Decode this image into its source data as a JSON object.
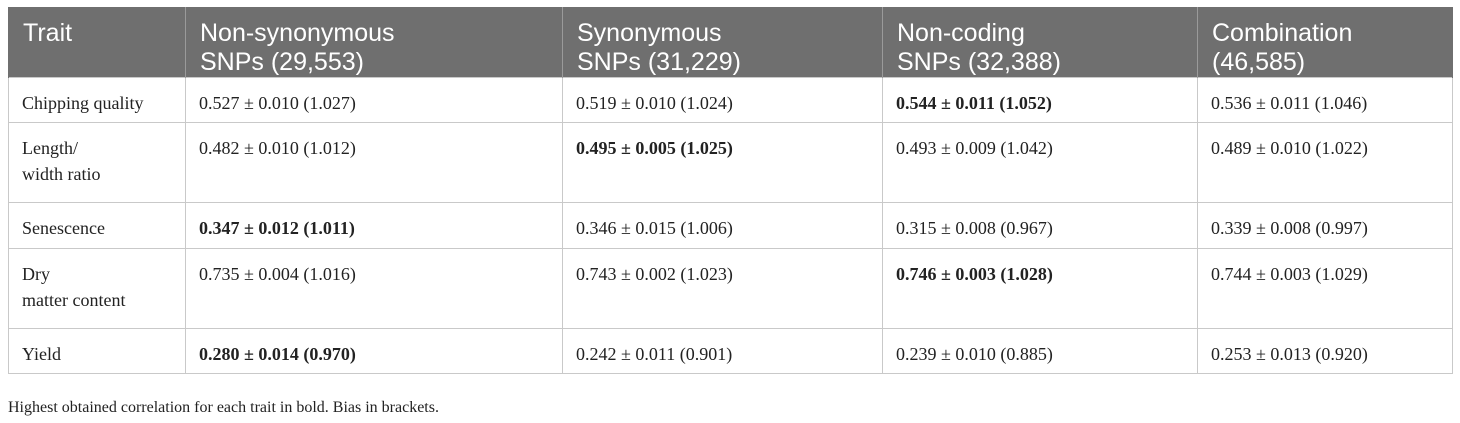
{
  "table": {
    "headers": [
      {
        "line1": "Trait",
        "line2": ""
      },
      {
        "line1": "Non-synonymous",
        "line2": "SNPs (29,553)"
      },
      {
        "line1": "Synonymous",
        "line2": "SNPs (31,229)"
      },
      {
        "line1": "Non-coding",
        "line2": "SNPs (32,388)"
      },
      {
        "line1": "Combination",
        "line2": "(46,585)"
      }
    ],
    "rows": [
      {
        "trait": "Chipping quality",
        "cells": [
          {
            "text": "0.527 ± 0.010 (1.027)",
            "bold": false
          },
          {
            "text": "0.519 ± 0.010 (1.024)",
            "bold": false
          },
          {
            "text": "0.544 ± 0.011 (1.052)",
            "bold": true
          },
          {
            "text": "0.536 ± 0.011 (1.046)",
            "bold": false
          }
        ]
      },
      {
        "trait": "Length/\nwidth ratio",
        "cells": [
          {
            "text": "0.482 ± 0.010 (1.012)",
            "bold": false
          },
          {
            "text": "0.495 ± 0.005 (1.025)",
            "bold": true
          },
          {
            "text": "0.493 ± 0.009 (1.042)",
            "bold": false
          },
          {
            "text": "0.489 ± 0.010 (1.022)",
            "bold": false
          }
        ]
      },
      {
        "trait": "Senescence",
        "cells": [
          {
            "text": "0.347 ± 0.012 (1.011)",
            "bold": true
          },
          {
            "text": "0.346 ± 0.015 (1.006)",
            "bold": false
          },
          {
            "text": "0.315 ± 0.008 (0.967)",
            "bold": false
          },
          {
            "text": "0.339 ± 0.008 (0.997)",
            "bold": false
          }
        ]
      },
      {
        "trait": "Dry\nmatter content",
        "cells": [
          {
            "text": "0.735 ± 0.004 (1.016)",
            "bold": false
          },
          {
            "text": "0.743 ± 0.002 (1.023)",
            "bold": false
          },
          {
            "text": "0.746 ± 0.003 (1.028)",
            "bold": true
          },
          {
            "text": "0.744 ± 0.003 (1.029)",
            "bold": false
          }
        ]
      },
      {
        "trait": "Yield",
        "cells": [
          {
            "text": "0.280 ± 0.014 (0.970)",
            "bold": true
          },
          {
            "text": "0.242 ± 0.011 (0.901)",
            "bold": false
          },
          {
            "text": "0.239 ± 0.010 (0.885)",
            "bold": false
          },
          {
            "text": "0.253 ± 0.013 (0.920)",
            "bold": false
          }
        ]
      }
    ]
  },
  "footnote": "Highest obtained correlation for each trait in bold. Bias in brackets.",
  "colors": {
    "header_bg": "#6f6f6f",
    "header_text": "#ffffff",
    "border": "#c9c9c9"
  }
}
